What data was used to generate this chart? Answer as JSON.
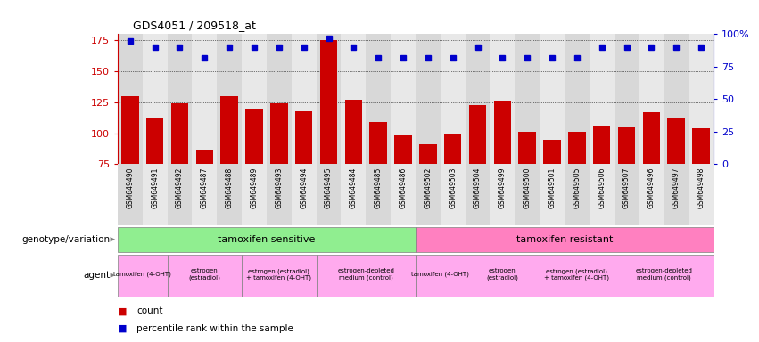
{
  "title": "GDS4051 / 209518_at",
  "samples": [
    "GSM649490",
    "GSM649491",
    "GSM649492",
    "GSM649487",
    "GSM649488",
    "GSM649489",
    "GSM649493",
    "GSM649494",
    "GSM649495",
    "GSM649484",
    "GSM649485",
    "GSM649486",
    "GSM649502",
    "GSM649503",
    "GSM649504",
    "GSM649499",
    "GSM649500",
    "GSM649501",
    "GSM649505",
    "GSM649506",
    "GSM649507",
    "GSM649496",
    "GSM649497",
    "GSM649498"
  ],
  "bar_values": [
    130,
    112,
    124,
    87,
    130,
    120,
    124,
    118,
    175,
    127,
    109,
    98,
    91,
    99,
    123,
    126,
    101,
    95,
    101,
    106,
    105,
    117,
    112,
    104
  ],
  "percentile_values": [
    95,
    90,
    90,
    82,
    90,
    90,
    90,
    90,
    97,
    90,
    82,
    82,
    82,
    82,
    90,
    82,
    82,
    82,
    82,
    90,
    90,
    90,
    90,
    90
  ],
  "ylim_left": [
    75,
    180
  ],
  "ylim_right": [
    0,
    100
  ],
  "yticks_left": [
    75,
    100,
    125,
    150,
    175
  ],
  "yticks_right": [
    0,
    25,
    50,
    75,
    100
  ],
  "bar_color": "#cc0000",
  "dot_color": "#0000cc",
  "genotype_sensitive_label": "tamoxifen sensitive",
  "genotype_resistant_label": "tamoxifen resistant",
  "genotype_sensitive_color": "#90ee90",
  "genotype_resistant_color": "#ff80c0",
  "agent_pink": "#ffaaee",
  "agent_groups": [
    {
      "label": "tamoxifen (4-OHT)",
      "start": 0,
      "end": 2
    },
    {
      "label": "estrogen\n(estradiol)",
      "start": 2,
      "end": 5
    },
    {
      "label": "estrogen (estradiol)\n+ tamoxifen (4-OHT)",
      "start": 5,
      "end": 8
    },
    {
      "label": "estrogen-depleted\nmedium (control)",
      "start": 8,
      "end": 12
    },
    {
      "label": "tamoxifen (4-OHT)",
      "start": 12,
      "end": 14
    },
    {
      "label": "estrogen\n(estradiol)",
      "start": 14,
      "end": 17
    },
    {
      "label": "estrogen (estradiol)\n+ tamoxifen (4-OHT)",
      "start": 17,
      "end": 20
    },
    {
      "label": "estrogen-depleted\nmedium (control)",
      "start": 20,
      "end": 24
    }
  ],
  "legend_count_color": "#cc0000",
  "legend_pct_color": "#0000cc",
  "background_color": "#ffffff"
}
